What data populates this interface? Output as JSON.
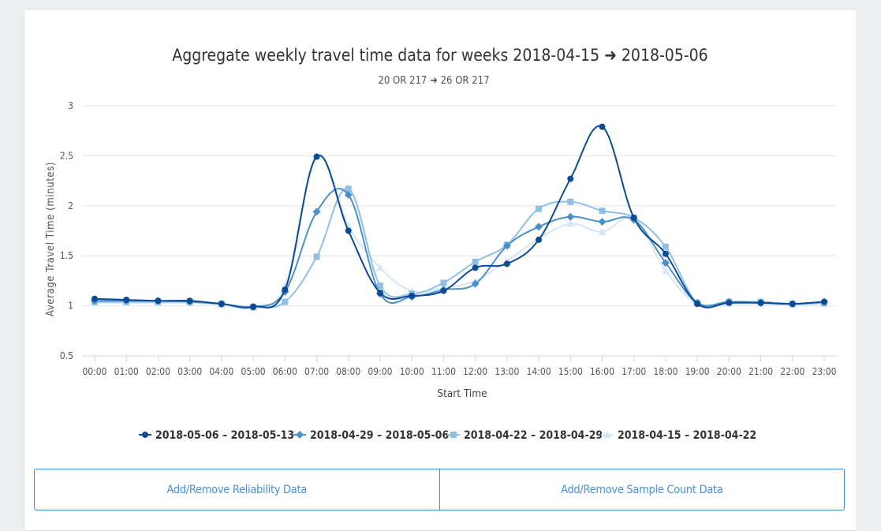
{
  "chart_data": {
    "type": "line",
    "title": "Aggregate weekly travel time data for weeks 2018-04-15 ➜ 2018-05-06",
    "subtitle": "20 OR 217 ➜ 26 OR 217",
    "xlabel": "Start Time",
    "ylabel": "Average Travel Time (minutes)",
    "ylim": [
      0.5,
      3
    ],
    "yticks": [
      "0.5",
      "1",
      "1.5",
      "2",
      "2.5",
      "3"
    ],
    "grid": true,
    "legend_position": "bottom-center",
    "categories": [
      "00:00",
      "01:00",
      "02:00",
      "03:00",
      "04:00",
      "05:00",
      "06:00",
      "07:00",
      "08:00",
      "09:00",
      "10:00",
      "11:00",
      "12:00",
      "13:00",
      "14:00",
      "15:00",
      "16:00",
      "17:00",
      "18:00",
      "19:00",
      "20:00",
      "21:00",
      "22:00",
      "23:00"
    ],
    "series": [
      {
        "name": "2018-05-06 – 2018-05-13",
        "color": "#0d4a94",
        "marker": "circle",
        "values": [
          1.07,
          1.06,
          1.05,
          1.05,
          1.02,
          0.99,
          1.16,
          2.49,
          1.75,
          1.13,
          1.1,
          1.15,
          1.38,
          1.42,
          1.66,
          2.27,
          2.79,
          1.88,
          1.52,
          1.02,
          1.03,
          1.03,
          1.02,
          1.04
        ]
      },
      {
        "name": "2018-04-29 – 2018-05-06",
        "color": "#4a90c8",
        "marker": "diamond",
        "values": [
          1.05,
          1.05,
          1.05,
          1.04,
          1.02,
          0.99,
          1.14,
          1.94,
          2.11,
          1.12,
          1.09,
          1.16,
          1.22,
          1.6,
          1.79,
          1.89,
          1.84,
          1.86,
          1.43,
          1.03,
          1.04,
          1.03,
          1.02,
          1.04
        ]
      },
      {
        "name": "2018-04-22 – 2018-04-29",
        "color": "#8fc0e3",
        "marker": "square",
        "values": [
          1.04,
          1.04,
          1.04,
          1.04,
          1.02,
          0.99,
          1.04,
          1.49,
          2.17,
          1.2,
          1.12,
          1.23,
          1.44,
          1.61,
          1.97,
          2.04,
          1.95,
          1.88,
          1.59,
          1.03,
          1.04,
          1.04,
          1.02,
          1.03
        ]
      },
      {
        "name": "2018-04-15 – 2018-04-22",
        "color": "#d4e6f6",
        "marker": "triangle",
        "values": [
          1.03,
          1.03,
          1.03,
          1.03,
          1.01,
          0.98,
          1.2,
          2.5,
          1.8,
          1.38,
          1.15,
          1.18,
          1.25,
          1.45,
          1.67,
          1.82,
          1.74,
          1.87,
          1.35,
          1.02,
          1.02,
          1.02,
          1.01,
          1.02
        ]
      }
    ]
  },
  "buttons": {
    "reliability": "Add/Remove Reliability Data",
    "sample_count": "Add/Remove Sample Count Data"
  }
}
